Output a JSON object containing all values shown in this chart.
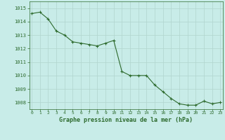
{
  "x": [
    0,
    1,
    2,
    3,
    4,
    5,
    6,
    7,
    8,
    9,
    10,
    11,
    12,
    13,
    14,
    15,
    16,
    17,
    18,
    19,
    20,
    21,
    22,
    23
  ],
  "y": [
    1014.6,
    1014.7,
    1014.2,
    1013.3,
    1013.0,
    1012.5,
    1012.4,
    1012.3,
    1012.2,
    1012.4,
    1012.6,
    1010.3,
    1010.0,
    1010.0,
    1010.0,
    1009.3,
    1008.8,
    1008.3,
    1007.9,
    1007.8,
    1007.8,
    1008.1,
    1007.9,
    1008.0
  ],
  "line_color": "#2d6a2d",
  "marker_color": "#2d6a2d",
  "bg_color": "#c8ece8",
  "grid_color": "#b0d4ce",
  "text_color": "#2d6a2d",
  "xlabel": "Graphe pression niveau de la mer (hPa)",
  "ylim_min": 1007.5,
  "ylim_max": 1015.5,
  "yticks": [
    1008,
    1009,
    1010,
    1011,
    1012,
    1013,
    1014,
    1015
  ],
  "xticks": [
    0,
    1,
    2,
    3,
    4,
    5,
    6,
    7,
    8,
    9,
    10,
    11,
    12,
    13,
    14,
    15,
    16,
    17,
    18,
    19,
    20,
    21,
    22,
    23
  ],
  "xlim_min": -0.3,
  "xlim_max": 23.3
}
